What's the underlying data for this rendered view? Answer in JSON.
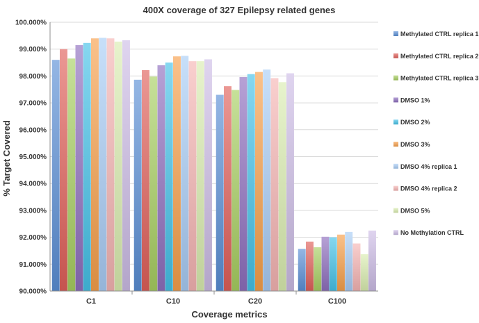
{
  "chart_data": {
    "type": "bar",
    "title": "400X coverage of 327 Epilepsy related genes",
    "xlabel": "Coverage metrics",
    "ylabel": "% Target Covered",
    "ylim": [
      90,
      100
    ],
    "ytick_step": 1,
    "ytick_labels": [
      "90.000%",
      "91.000%",
      "92.000%",
      "93.000%",
      "94.000%",
      "95.000%",
      "96.000%",
      "97.000%",
      "98.000%",
      "99.000%",
      "100.000%"
    ],
    "categories": [
      "C1",
      "C10",
      "C20",
      "C100"
    ],
    "grid": true,
    "legend_position": "right",
    "series": [
      {
        "name": "Methylated CTRL replica 1",
        "color": "#5b8fd6",
        "values": [
          98.6,
          97.86,
          97.3,
          91.57
        ]
      },
      {
        "name": "Methylated CTRL replica 2",
        "color": "#e0605a",
        "values": [
          99.0,
          98.22,
          97.62,
          91.84
        ]
      },
      {
        "name": "Methylated CTRL replica 3",
        "color": "#a8cf62",
        "values": [
          98.65,
          97.98,
          97.48,
          91.63
        ]
      },
      {
        "name": "DMSO 1%",
        "color": "#8e6fbe",
        "values": [
          99.15,
          98.4,
          97.96,
          92.02
        ]
      },
      {
        "name": "DMSO 2%",
        "color": "#45c2e8",
        "values": [
          99.23,
          98.5,
          98.07,
          92.0
        ]
      },
      {
        "name": "DMSO 3%",
        "color": "#f7a04b",
        "values": [
          99.4,
          98.73,
          98.15,
          92.1
        ]
      },
      {
        "name": "DMSO 4% replica 1",
        "color": "#a9cdf5",
        "values": [
          99.42,
          98.75,
          98.24,
          92.2
        ]
      },
      {
        "name": "DMSO 4% replica 2",
        "color": "#f5b5b3",
        "values": [
          99.4,
          98.55,
          97.92,
          91.77
        ]
      },
      {
        "name": "DMSO 5%",
        "color": "#daedb0",
        "values": [
          99.28,
          98.55,
          97.77,
          91.37
        ]
      },
      {
        "name": "No Methylation CTRL",
        "color": "#cdbde6",
        "values": [
          99.33,
          98.62,
          98.1,
          92.25
        ]
      }
    ]
  }
}
